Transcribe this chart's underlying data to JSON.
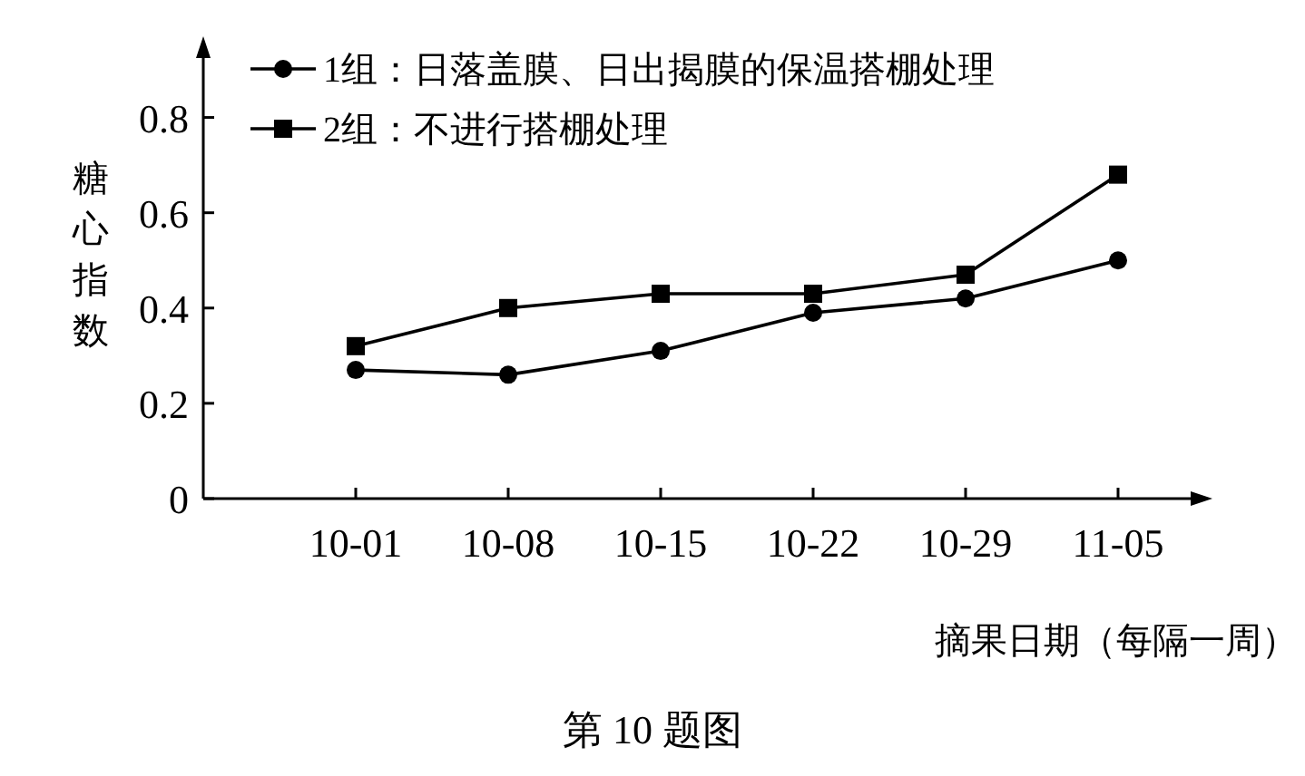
{
  "chart_data": {
    "type": "line",
    "categories": [
      "10-01",
      "10-08",
      "10-15",
      "10-22",
      "10-29",
      "11-05"
    ],
    "series": [
      {
        "name": "1组：日落盖膜、日出揭膜的保温搭棚处理",
        "color": "#000000",
        "marker": "circle",
        "values": [
          0.27,
          0.26,
          0.31,
          0.39,
          0.42,
          0.5
        ]
      },
      {
        "name": "2组：不进行搭棚处理",
        "color": "#000000",
        "marker": "square",
        "values": [
          0.32,
          0.4,
          0.43,
          0.43,
          0.47,
          0.68
        ]
      }
    ],
    "xlabel": "摘果日期（每隔一周）",
    "ylabel": "糖心指数",
    "ylim": [
      0,
      0.94
    ],
    "yticks": [
      0,
      0.2,
      0.4,
      0.6,
      0.8
    ],
    "legend": "top left",
    "line_style": "solid",
    "annotations": [
      "第 10 题图"
    ]
  }
}
